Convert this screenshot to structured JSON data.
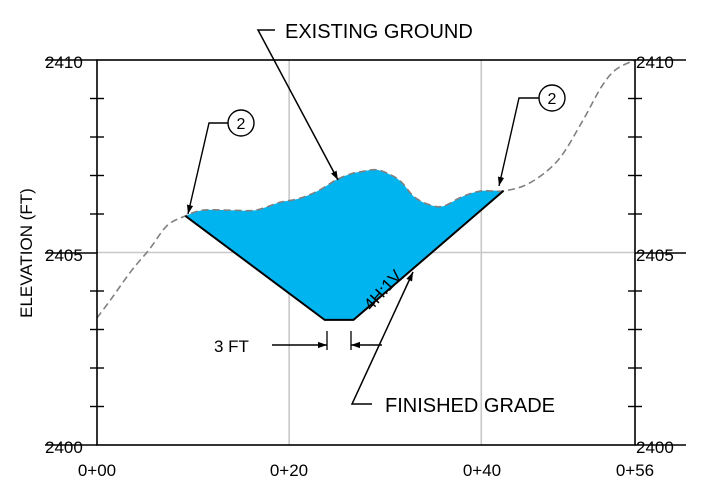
{
  "title": "",
  "annotations": {
    "existing_ground": "EXISTING GROUND",
    "finished_grade": "FINISHED GRADE",
    "slope": "4H:1V",
    "bottom_width": "3 FT",
    "callout_left": "2",
    "callout_right": "2"
  },
  "axes": {
    "ylabel": "ELEVATION (FT)",
    "y_ticks_left": [
      "2410",
      "2405",
      "2400"
    ],
    "y_ticks_right": [
      "2410",
      "2405",
      "2400"
    ],
    "x_ticks": [
      "0+00",
      "0+20",
      "0+40",
      "0+56"
    ]
  },
  "colors": {
    "cut_fill": "#00b4f0",
    "grid": "#c8c8c8",
    "line": "#000000",
    "ground_dash": "#808080"
  },
  "chart_data": {
    "type": "area",
    "xlabel": "",
    "ylabel": "ELEVATION (FT)",
    "xlim": [
      0,
      56
    ],
    "ylim": [
      2400,
      2410
    ],
    "x_tick_values": [
      0,
      20,
      40,
      56
    ],
    "y_tick_values": [
      2400,
      2405,
      2410
    ],
    "grid": true,
    "existing_ground": {
      "x": [
        0,
        1.5,
        3.5,
        5.5,
        7.3,
        9.2,
        11,
        14,
        16.5,
        19,
        21,
        23,
        25,
        26.5,
        27.5,
        29,
        30.3,
        31.6,
        33,
        34.5,
        36,
        38,
        40,
        42.3,
        45,
        48,
        50.5,
        52.5,
        54,
        56
      ],
      "y": [
        2403.3,
        2403.8,
        2404.5,
        2405.1,
        2405.7,
        2405.95,
        2406.1,
        2406.1,
        2406.1,
        2406.3,
        2406.4,
        2406.6,
        2406.9,
        2407.05,
        2407.1,
        2407.15,
        2407.05,
        2406.85,
        2406.45,
        2406.25,
        2406.2,
        2406.45,
        2406.6,
        2406.6,
        2406.8,
        2407.4,
        2408.4,
        2409.3,
        2409.75,
        2410
      ]
    },
    "finished_grade": {
      "x": [
        9.2,
        23.7,
        26.7,
        42.3
      ],
      "y": [
        2405.95,
        2403.25,
        2403.25,
        2406.6
      ]
    }
  }
}
